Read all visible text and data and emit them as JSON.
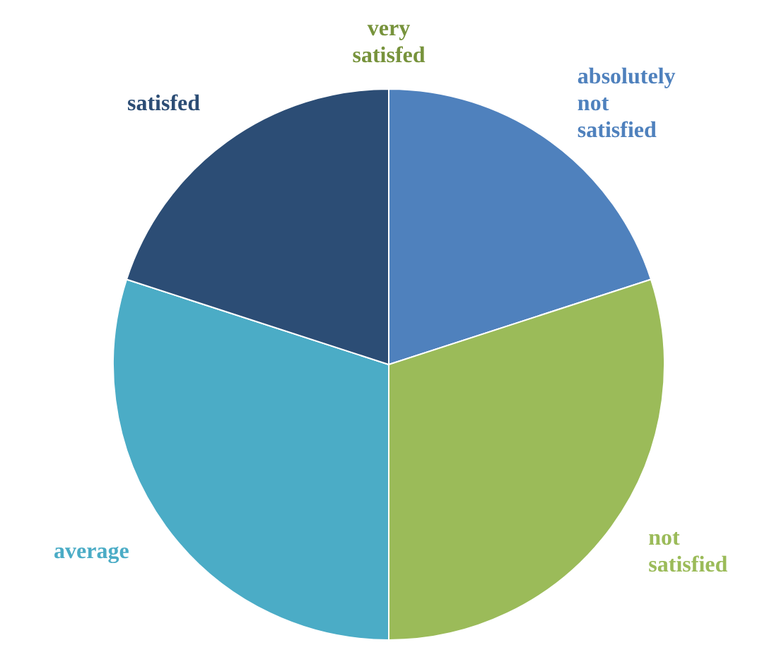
{
  "chart_data": {
    "type": "pie",
    "categories": [
      "absolutely not satisfied",
      "not satisfied",
      "average",
      "satisfed",
      "very satisfed"
    ],
    "values": [
      20,
      30,
      30,
      20,
      0
    ],
    "colors": [
      "#4f81bd",
      "#9bbb59",
      "#4bacc6",
      "#2c4d75",
      "#77933c"
    ]
  }
}
